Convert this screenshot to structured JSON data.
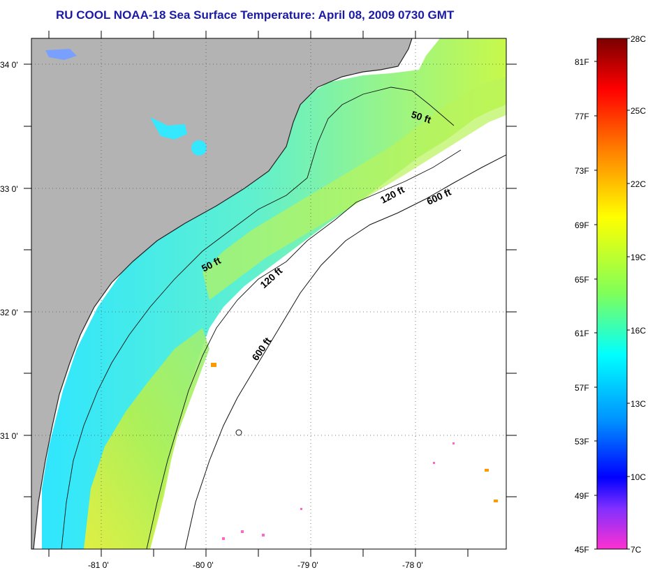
{
  "title": "RU COOL  NOAA-18  Sea Surface Temperature:  April 08, 2009 0730 GMT",
  "map": {
    "lon_labels": [
      "-81 0'",
      "-80 0'",
      "-79 0'",
      "-78 0'"
    ],
    "lat_labels": [
      "34 0'",
      "33 0'",
      "32 0'",
      "31 0'"
    ],
    "isobath_labels": [
      "50 ft",
      "120 ft",
      "600 ft",
      "50 ft",
      "120 ft",
      "600 ft"
    ]
  },
  "colorbar": {
    "fahrenheit_labels": [
      "81F",
      "77F",
      "73F",
      "69F",
      "65F",
      "61F",
      "57F",
      "53F",
      "49F",
      "45F"
    ],
    "celsius_labels": [
      "28C",
      "25C",
      "22C",
      "19C",
      "16C",
      "13C",
      "10C",
      "7C"
    ],
    "gradient_stops": [
      {
        "offset": 0.0,
        "color": "#7a0000"
      },
      {
        "offset": 0.1,
        "color": "#ff0000"
      },
      {
        "offset": 0.22,
        "color": "#ff8000"
      },
      {
        "offset": 0.35,
        "color": "#ffff00"
      },
      {
        "offset": 0.5,
        "color": "#7fff5a"
      },
      {
        "offset": 0.62,
        "color": "#00ffff"
      },
      {
        "offset": 0.75,
        "color": "#0090ff"
      },
      {
        "offset": 0.86,
        "color": "#0000ff"
      },
      {
        "offset": 0.92,
        "color": "#8030ff"
      },
      {
        "offset": 1.0,
        "color": "#ff30d0"
      }
    ]
  },
  "colors": {
    "land": "#b3b3b3",
    "title": "#1a1aa6",
    "frame": "#000000"
  }
}
